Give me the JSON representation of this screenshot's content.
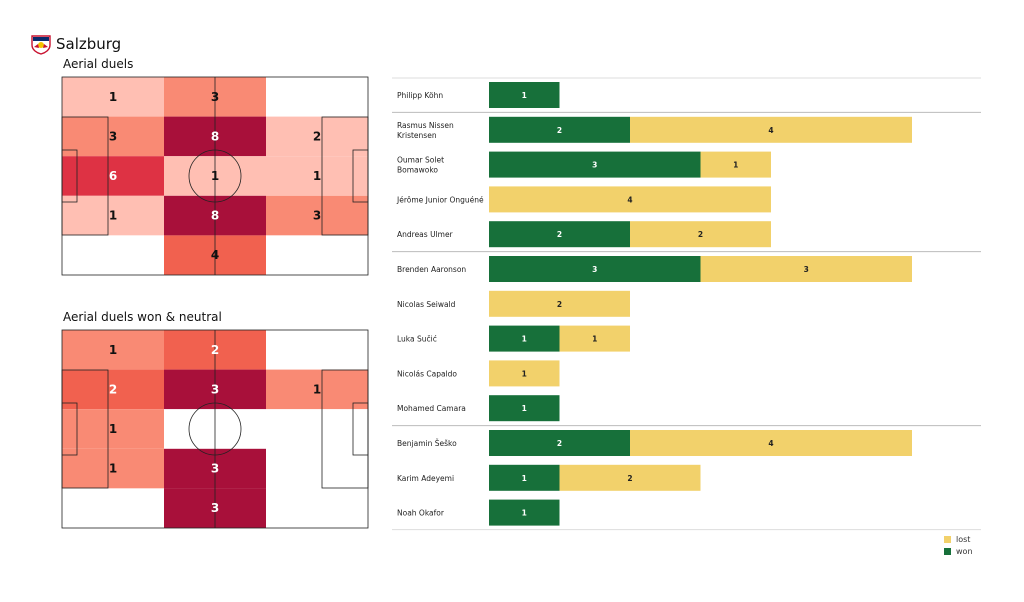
{
  "team": {
    "name": "Salzburg",
    "logo_icon": "red-bull-salzburg-crest-icon"
  },
  "colors": {
    "won": "#17703a",
    "lost": "#f2d16b",
    "heat_scale": [
      "#ffffff",
      "#ffbfb3",
      "#f98a74",
      "#f1614f",
      "#de3244",
      "#a8103a"
    ]
  },
  "chart_data": [
    {
      "type": "heatmap",
      "title": "Aerial duels",
      "rows": 5,
      "cols": 3,
      "cells": [
        [
          1,
          3,
          null
        ],
        [
          3,
          8,
          2
        ],
        [
          6,
          1,
          1
        ],
        [
          1,
          8,
          3
        ],
        [
          null,
          4,
          null
        ]
      ],
      "max": 8
    },
    {
      "type": "heatmap",
      "title": "Aerial duels won & neutral",
      "rows": 5,
      "cols": 3,
      "cells": [
        [
          1,
          2,
          null
        ],
        [
          2,
          3,
          1
        ],
        [
          1,
          null,
          null
        ],
        [
          1,
          3,
          null
        ],
        [
          null,
          3,
          null
        ]
      ],
      "max": 3
    },
    {
      "type": "bar",
      "orientation": "horizontal",
      "stacked": true,
      "categories": [
        "Philipp Köhn",
        "Rasmus Nissen Kristensen",
        "Oumar Solet Bomawoko",
        "Jérôme Junior Onguéné",
        "Andreas Ulmer",
        "Brenden  Aaronson",
        "Nicolas Seiwald",
        "Luka Sučić",
        "Nicolás Capaldo",
        "Mohamed Camara",
        "Benjamin Šeško",
        "Karim Adeyemi",
        "Noah Okafor"
      ],
      "label_lines": [
        [
          "Philipp Köhn"
        ],
        [
          "Rasmus Nissen",
          "Kristensen"
        ],
        [
          "Oumar Solet",
          "Bomawoko"
        ],
        [
          "Jérôme Junior Onguéné"
        ],
        [
          "Andreas Ulmer"
        ],
        [
          "Brenden  Aaronson"
        ],
        [
          "Nicolas Seiwald"
        ],
        [
          "Luka Sučić"
        ],
        [
          "Nicolás Capaldo"
        ],
        [
          "Mohamed Camara"
        ],
        [
          "Benjamin Šeško"
        ],
        [
          "Karim Adeyemi"
        ],
        [
          "Noah Okafor"
        ]
      ],
      "series": [
        {
          "name": "won",
          "values": [
            1,
            2,
            3,
            0,
            2,
            3,
            0,
            1,
            0,
            1,
            2,
            1,
            1
          ]
        },
        {
          "name": "lost",
          "values": [
            0,
            4,
            1,
            4,
            2,
            3,
            2,
            1,
            1,
            0,
            4,
            2,
            0
          ]
        }
      ],
      "group_separators_after": [
        0,
        4,
        9
      ],
      "xlim": [
        0,
        6
      ],
      "legend": {
        "placement": "bottom-right",
        "entries": [
          "lost",
          "won"
        ]
      }
    }
  ]
}
